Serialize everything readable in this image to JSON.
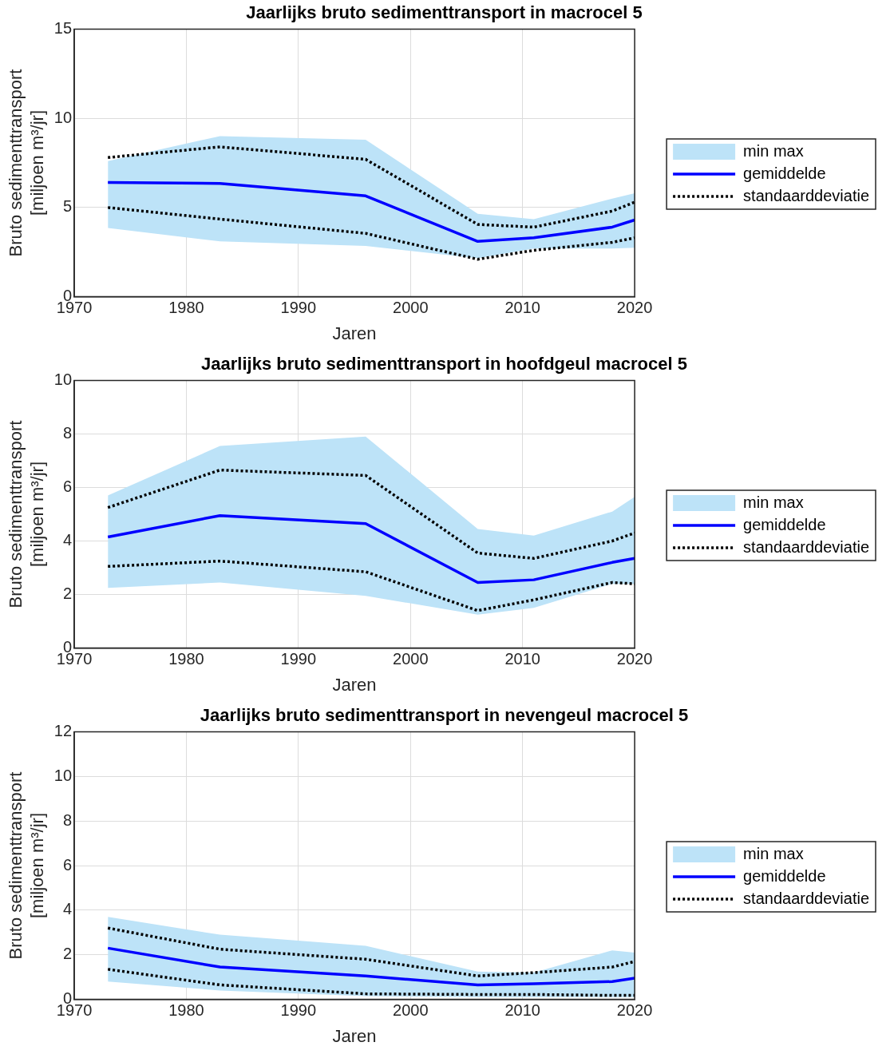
{
  "chart_data": [
    {
      "type": "line",
      "title": "Jaarlijks bruto sedimenttransport in macrocel 5",
      "xlabel": "Jaren",
      "ylabel": "Bruto sedimenttransport\n[miljoen m³/jr]",
      "x": [
        1973,
        1983,
        1996,
        2006,
        2011,
        2018,
        2020
      ],
      "xlim": [
        1970,
        2020
      ],
      "xticks": [
        1970,
        1980,
        1990,
        2000,
        2010,
        2020
      ],
      "ylim": [
        0,
        15
      ],
      "yticks": [
        0,
        5,
        10,
        15
      ],
      "grid": true,
      "legend": "right",
      "series": [
        {
          "name": "min max",
          "type": "area",
          "color": "#bde3f8",
          "values": [
            null,
            null,
            null,
            null,
            null,
            null,
            null
          ],
          "lower": [
            3.85,
            3.1,
            2.85,
            2.15,
            2.7,
            2.7,
            2.75
          ],
          "upper": [
            7.6,
            9.0,
            8.8,
            4.65,
            4.35,
            5.5,
            5.8
          ]
        },
        {
          "name": "gemiddelde",
          "type": "line",
          "color": "#0000ff",
          "line_style": "solid",
          "values": [
            6.4,
            6.35,
            5.65,
            3.1,
            3.3,
            3.9,
            4.3
          ]
        },
        {
          "name": "standaarddeviatie",
          "type": "line",
          "color": "#000000",
          "line_style": "dotted",
          "values": [
            7.8,
            8.4,
            7.7,
            4.05,
            3.9,
            4.8,
            5.3
          ]
        },
        {
          "type": "line",
          "color": "#000000",
          "line_style": "dotted",
          "values": [
            5.0,
            4.35,
            3.55,
            2.1,
            2.6,
            3.05,
            3.3
          ]
        }
      ]
    },
    {
      "type": "line",
      "title": "Jaarlijks bruto sedimenttransport in hoofdgeul macrocel 5",
      "xlabel": "Jaren",
      "ylabel": "Bruto sedimenttransport\n[miljoen m³/jr]",
      "x": [
        1973,
        1983,
        1996,
        2006,
        2011,
        2018,
        2020
      ],
      "xlim": [
        1970,
        2020
      ],
      "xticks": [
        1970,
        1980,
        1990,
        2000,
        2010,
        2020
      ],
      "ylim": [
        0,
        10
      ],
      "yticks": [
        0,
        2,
        4,
        6,
        8,
        10
      ],
      "grid": true,
      "legend": "right",
      "series": [
        {
          "name": "min max",
          "type": "area",
          "color": "#bde3f8",
          "values": [
            null,
            null,
            null,
            null,
            null,
            null,
            null
          ],
          "lower": [
            2.25,
            2.45,
            1.95,
            1.25,
            1.5,
            2.4,
            2.4
          ],
          "upper": [
            5.7,
            7.55,
            7.9,
            4.45,
            4.2,
            5.1,
            5.65
          ]
        },
        {
          "name": "gemiddelde",
          "type": "line",
          "color": "#0000ff",
          "line_style": "solid",
          "values": [
            4.15,
            4.95,
            4.65,
            2.45,
            2.55,
            3.2,
            3.35
          ]
        },
        {
          "name": "standaarddeviatie",
          "type": "line",
          "color": "#000000",
          "line_style": "dotted",
          "values": [
            5.25,
            6.65,
            6.45,
            3.55,
            3.35,
            4.0,
            4.3
          ]
        },
        {
          "type": "line",
          "color": "#000000",
          "line_style": "dotted",
          "values": [
            3.05,
            3.25,
            2.85,
            1.4,
            1.8,
            2.45,
            2.4
          ]
        }
      ]
    },
    {
      "type": "line",
      "title": "Jaarlijks bruto sedimenttransport in nevengeul macrocel 5",
      "xlabel": "Jaren",
      "ylabel": "Bruto sedimenttransport\n[miljoen m³/jr]",
      "x": [
        1973,
        1983,
        1996,
        2006,
        2011,
        2018,
        2020
      ],
      "xlim": [
        1970,
        2020
      ],
      "xticks": [
        1970,
        1980,
        1990,
        2000,
        2010,
        2020
      ],
      "ylim": [
        0,
        12
      ],
      "yticks": [
        0,
        2,
        4,
        6,
        8,
        10,
        12
      ],
      "grid": true,
      "legend": "right",
      "series": [
        {
          "name": "min max",
          "type": "area",
          "color": "#bde3f8",
          "values": [
            null,
            null,
            null,
            null,
            null,
            null,
            null
          ],
          "lower": [
            0.8,
            0.4,
            0.15,
            0.1,
            0.1,
            0.1,
            0.1
          ],
          "upper": [
            3.7,
            2.9,
            2.4,
            1.25,
            1.2,
            2.2,
            2.1
          ]
        },
        {
          "name": "gemiddelde",
          "type": "line",
          "color": "#0000ff",
          "line_style": "solid",
          "values": [
            2.3,
            1.45,
            1.05,
            0.65,
            0.7,
            0.8,
            0.95
          ]
        },
        {
          "name": "standaarddeviatie",
          "type": "line",
          "color": "#000000",
          "line_style": "dotted",
          "values": [
            3.2,
            2.25,
            1.8,
            1.05,
            1.2,
            1.45,
            1.7
          ]
        },
        {
          "type": "line",
          "color": "#000000",
          "line_style": "dotted",
          "values": [
            1.35,
            0.65,
            0.25,
            0.22,
            0.22,
            0.18,
            0.18
          ]
        }
      ]
    }
  ]
}
